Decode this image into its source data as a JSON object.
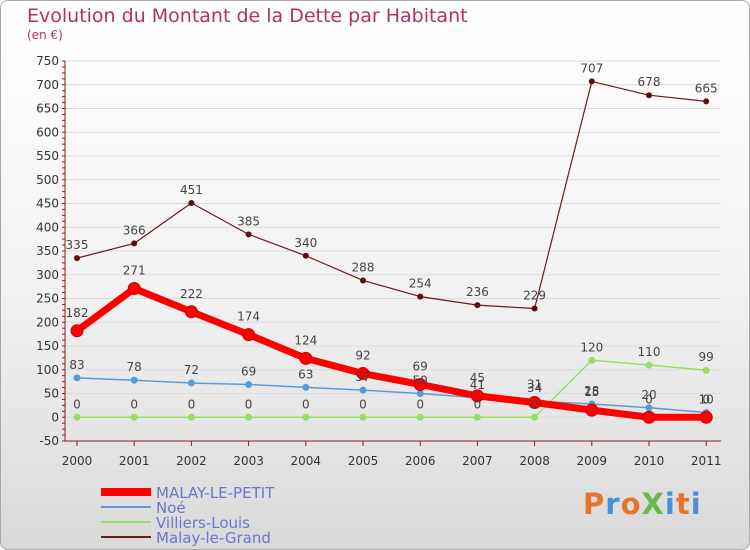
{
  "header": {
    "title": "Evolution du Montant de la Dette par Habitant",
    "unit": "(en €)"
  },
  "logo": {
    "text": "ProXiti"
  },
  "colors": {
    "title": "#b0306a",
    "axis": "#8b1a1a",
    "grid": "#dcdcdc",
    "labels": "#444444"
  },
  "chart_data": {
    "type": "line",
    "title": "Evolution du Montant de la Dette par Habitant",
    "ylabel": "(en €)",
    "xlabel": "",
    "x": [
      "2000",
      "2001",
      "2002",
      "2003",
      "2004",
      "2005",
      "2006",
      "2007",
      "2008",
      "2009",
      "2010",
      "2011"
    ],
    "ylim": [
      -50,
      750
    ],
    "yticks": [
      -50,
      0,
      50,
      100,
      150,
      200,
      250,
      300,
      350,
      400,
      450,
      500,
      550,
      600,
      650,
      700,
      750
    ],
    "grid": "horizontal",
    "legend_position": "bottom-left",
    "series": [
      {
        "name": "MALAY-LE-PETIT",
        "color": "#ff0000",
        "values": [
          182,
          271,
          222,
          174,
          124,
          92,
          69,
          45,
          31,
          15,
          0,
          0
        ]
      },
      {
        "name": "Noé",
        "color": "#5b9bd5",
        "values": [
          83,
          78,
          72,
          69,
          63,
          57,
          50,
          41,
          34,
          28,
          20,
          10
        ]
      },
      {
        "name": "Villiers-Louis",
        "color": "#99dd66",
        "values": [
          0,
          0,
          0,
          0,
          0,
          0,
          0,
          0,
          0,
          120,
          110,
          99
        ]
      },
      {
        "name": "Malay-le-Grand",
        "color": "#6b1a1a",
        "values": [
          335,
          366,
          451,
          385,
          340,
          288,
          254,
          236,
          229,
          707,
          678,
          665
        ]
      }
    ]
  }
}
